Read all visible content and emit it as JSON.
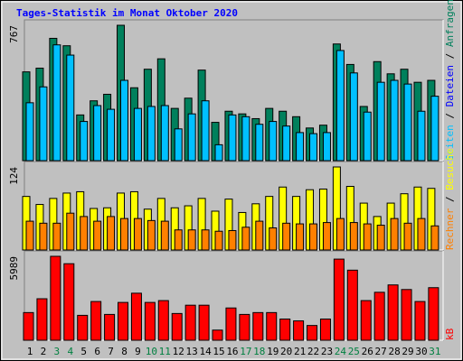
{
  "chart_data": [
    {
      "type": "bar",
      "title": "Tages-Statistik im Monat Oktober 2020",
      "series": [
        {
          "color": "#00805c",
          "values": [
            503,
            524,
            693,
            651,
            259,
            339,
            376,
            767,
            413,
            518,
            577,
            296,
            354,
            513,
            217,
            280,
            265,
            238,
            296,
            280,
            249,
            185,
            201,
            661,
            545,
            307,
            561,
            492,
            518,
            444,
            455
          ]
        },
        {
          "color": "#00c0ff",
          "values": [
            328,
            418,
            656,
            598,
            222,
            312,
            291,
            455,
            296,
            307,
            312,
            180,
            265,
            339,
            90,
            259,
            249,
            206,
            222,
            196,
            159,
            153,
            159,
            624,
            497,
            275,
            444,
            455,
            434,
            280,
            365
          ]
        }
      ],
      "ylim": [
        0,
        767
      ],
      "yticks": [
        767
      ],
      "ylabel": [
        {
          "text": "Seiten",
          "color": "#00c0ff"
        },
        {
          "text": " / ",
          "color": "#000000"
        },
        {
          "text": "Dateien",
          "color": "#0000ff"
        },
        {
          "text": " / ",
          "color": "#000000"
        },
        {
          "text": "Anfragen",
          "color": "#00805c"
        }
      ]
    },
    {
      "type": "bar",
      "series": [
        {
          "color": "#ffff00",
          "values": [
            80,
            68,
            77,
            85,
            87,
            62,
            63,
            85,
            87,
            61,
            77,
            63,
            66,
            77,
            58,
            76,
            56,
            69,
            80,
            94,
            80,
            90,
            91,
            124,
            95,
            70,
            50,
            70,
            84,
            94,
            92
          ]
        },
        {
          "color": "#ff8000",
          "values": [
            43,
            40,
            40,
            55,
            50,
            43,
            50,
            47,
            47,
            44,
            43,
            30,
            30,
            30,
            28,
            29,
            34,
            43,
            33,
            40,
            39,
            39,
            41,
            47,
            41,
            39,
            37,
            47,
            40,
            47,
            36
          ]
        }
      ],
      "ylim": [
        0,
        124
      ],
      "yticks": [
        124
      ],
      "ylabel": [
        {
          "text": "Rechner",
          "color": "#ff8000"
        },
        {
          "text": " / ",
          "color": "#000000"
        },
        {
          "text": "Besuche",
          "color": "#ffff00"
        }
      ]
    },
    {
      "type": "bar",
      "series": [
        {
          "color": "#ff0000",
          "values": [
            1974,
            2961,
            5989,
            5461,
            1777,
            2764,
            1842,
            2698,
            3356,
            2698,
            2829,
            1908,
            2500,
            2500,
            724,
            2303,
            1842,
            1974,
            1974,
            1513,
            1382,
            1053,
            1513,
            5790,
            5001,
            2829,
            3422,
            3948,
            3619,
            2764,
            3751
          ]
        }
      ],
      "ylim": [
        0,
        5989
      ],
      "yticks": [
        5989
      ],
      "ylabel": [
        {
          "text": "kB",
          "color": "#ff0000"
        }
      ],
      "categories": [
        "1",
        "2",
        "3",
        "4",
        "5",
        "6",
        "7",
        "8",
        "9",
        "10",
        "11",
        "12",
        "13",
        "14",
        "15",
        "16",
        "17",
        "18",
        "19",
        "20",
        "21",
        "22",
        "23",
        "24",
        "25",
        "26",
        "27",
        "28",
        "29",
        "30",
        "31"
      ],
      "category_colors": [
        "#000000",
        "#000000",
        "#008040",
        "#008040",
        "#000000",
        "#000000",
        "#000000",
        "#000000",
        "#000000",
        "#008040",
        "#008040",
        "#000000",
        "#000000",
        "#000000",
        "#000000",
        "#000000",
        "#008040",
        "#008040",
        "#000000",
        "#000000",
        "#000000",
        "#000000",
        "#000000",
        "#008040",
        "#008040",
        "#000000",
        "#000000",
        "#000000",
        "#000000",
        "#000000",
        "#008040"
      ]
    }
  ]
}
